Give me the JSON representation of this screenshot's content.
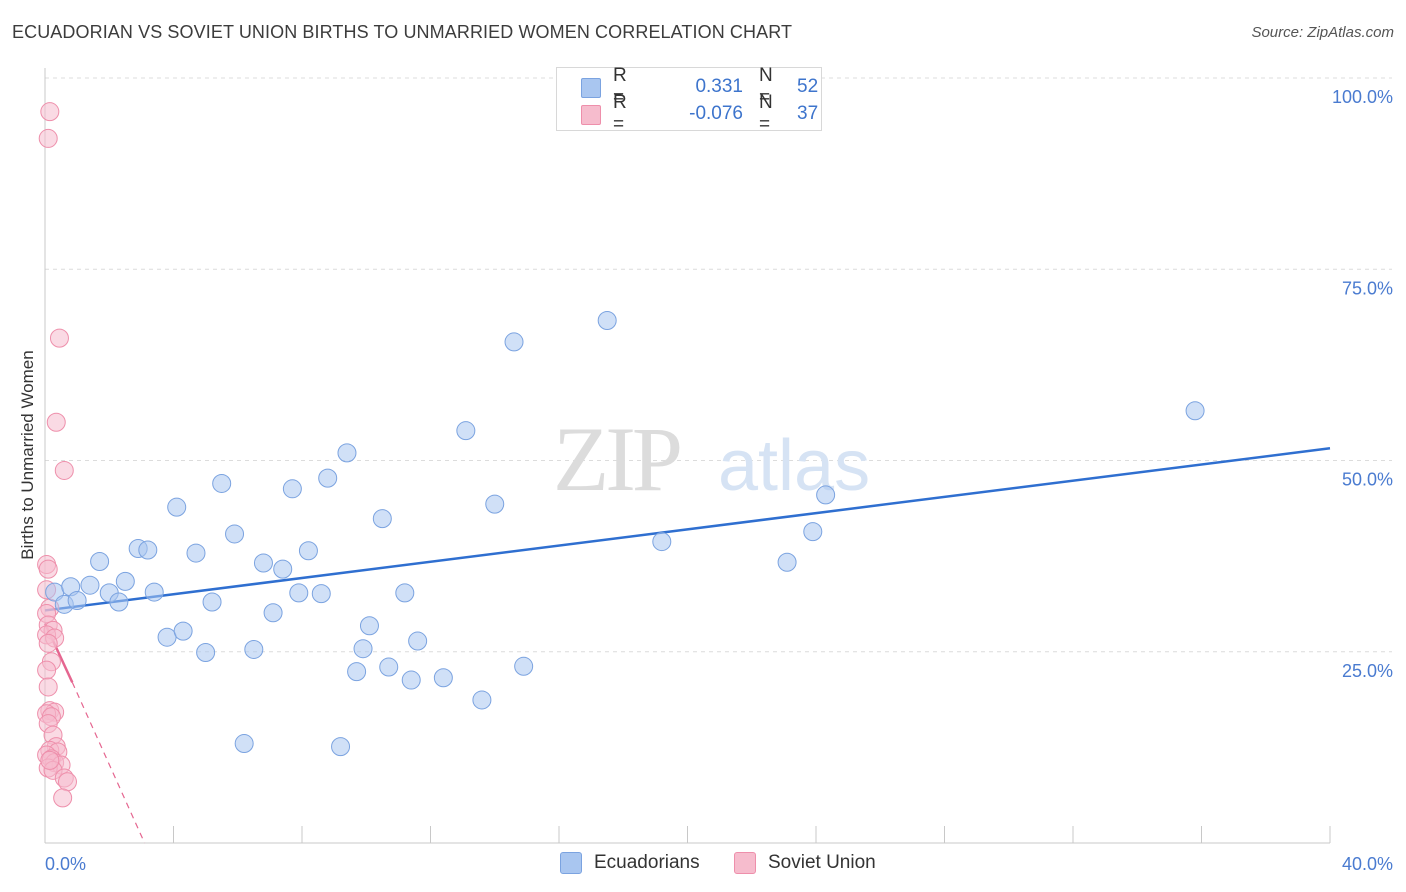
{
  "header": {
    "title": "ECUADORIAN VS SOVIET UNION BIRTHS TO UNMARRIED WOMEN CORRELATION CHART",
    "source": "Source: ZipAtlas.com"
  },
  "watermark": {
    "zip": "ZIP",
    "atlas": "atlas"
  },
  "legend": {
    "rows": [
      {
        "r_label": "R =",
        "r_value": "0.331",
        "n_label": "N =",
        "n_value": "52",
        "color": "#a9c6f0",
        "border": "#7ba3e0"
      },
      {
        "r_label": "R =",
        "r_value": "-0.076",
        "n_label": "N =",
        "n_value": "37",
        "color": "#f6bccd",
        "border": "#ee8fab"
      }
    ]
  },
  "bottom_legend": {
    "items": [
      {
        "label": "Ecuadorians",
        "color": "#a9c6f0",
        "border": "#7ba3e0"
      },
      {
        "label": "Soviet Union",
        "color": "#f6bccd",
        "border": "#ee8fab"
      }
    ]
  },
  "chart_data": {
    "type": "scatter",
    "title": "ECUADORIAN VS SOVIET UNION BIRTHS TO UNMARRIED WOMEN CORRELATION CHART",
    "xlabel": "",
    "ylabel": "Births to Unmarried Women",
    "xlim": [
      0,
      40
    ],
    "ylim": [
      0,
      100
    ],
    "x_tick_labels": [
      "0.0%",
      "40.0%"
    ],
    "y_ticks": [
      25,
      50,
      75,
      100
    ],
    "y_tick_labels": [
      "25.0%",
      "50.0%",
      "75.0%",
      "100.0%"
    ],
    "grid": true,
    "series": [
      {
        "name": "Ecuadorians",
        "color": "#a9c6f0",
        "stroke": "#7ba3e0",
        "trend": {
          "x": [
            0,
            40
          ],
          "y": [
            30.4,
            51.6
          ],
          "color": "#2f6fd0"
        },
        "points": [
          {
            "x": 0.3,
            "y": 32.8
          },
          {
            "x": 0.6,
            "y": 31.2
          },
          {
            "x": 0.8,
            "y": 33.5
          },
          {
            "x": 1.0,
            "y": 31.7
          },
          {
            "x": 1.4,
            "y": 33.7
          },
          {
            "x": 1.7,
            "y": 36.8
          },
          {
            "x": 2.0,
            "y": 32.7
          },
          {
            "x": 2.3,
            "y": 31.5
          },
          {
            "x": 2.5,
            "y": 34.2
          },
          {
            "x": 2.9,
            "y": 38.5
          },
          {
            "x": 3.2,
            "y": 38.3
          },
          {
            "x": 3.4,
            "y": 32.8
          },
          {
            "x": 3.8,
            "y": 26.9
          },
          {
            "x": 4.1,
            "y": 43.9
          },
          {
            "x": 4.3,
            "y": 27.7
          },
          {
            "x": 4.7,
            "y": 37.9
          },
          {
            "x": 5.0,
            "y": 24.9
          },
          {
            "x": 5.2,
            "y": 31.5
          },
          {
            "x": 5.5,
            "y": 47.0
          },
          {
            "x": 5.9,
            "y": 40.4
          },
          {
            "x": 6.2,
            "y": 13.0
          },
          {
            "x": 6.5,
            "y": 25.3
          },
          {
            "x": 6.8,
            "y": 36.6
          },
          {
            "x": 7.1,
            "y": 30.1
          },
          {
            "x": 7.4,
            "y": 35.8
          },
          {
            "x": 7.7,
            "y": 46.3
          },
          {
            "x": 7.9,
            "y": 32.7
          },
          {
            "x": 8.2,
            "y": 38.2
          },
          {
            "x": 8.6,
            "y": 32.6
          },
          {
            "x": 8.8,
            "y": 47.7
          },
          {
            "x": 9.2,
            "y": 12.6
          },
          {
            "x": 9.4,
            "y": 51.0
          },
          {
            "x": 9.7,
            "y": 22.4
          },
          {
            "x": 9.9,
            "y": 25.4
          },
          {
            "x": 10.1,
            "y": 28.4
          },
          {
            "x": 10.5,
            "y": 42.4
          },
          {
            "x": 10.7,
            "y": 23.0
          },
          {
            "x": 11.2,
            "y": 32.7
          },
          {
            "x": 11.4,
            "y": 21.3
          },
          {
            "x": 11.6,
            "y": 26.4
          },
          {
            "x": 12.4,
            "y": 21.6
          },
          {
            "x": 13.1,
            "y": 53.9
          },
          {
            "x": 13.6,
            "y": 18.7
          },
          {
            "x": 14.0,
            "y": 44.3
          },
          {
            "x": 14.6,
            "y": 65.5
          },
          {
            "x": 14.9,
            "y": 23.1
          },
          {
            "x": 17.5,
            "y": 68.3
          },
          {
            "x": 19.2,
            "y": 39.4
          },
          {
            "x": 23.1,
            "y": 36.7
          },
          {
            "x": 23.9,
            "y": 40.7
          },
          {
            "x": 24.3,
            "y": 45.5
          },
          {
            "x": 35.8,
            "y": 56.5
          }
        ]
      },
      {
        "name": "Soviet Union",
        "color": "#f6bccd",
        "stroke": "#ee8fab",
        "trend": {
          "x": [
            0,
            0.85
          ],
          "y": [
            28.7,
            21.0
          ],
          "dash_to": [
            3.1,
            0
          ],
          "color": "#e56690"
        },
        "points": [
          {
            "x": 0.15,
            "y": 95.6
          },
          {
            "x": 0.1,
            "y": 92.1
          },
          {
            "x": 0.45,
            "y": 66.0
          },
          {
            "x": 0.35,
            "y": 55.0
          },
          {
            "x": 0.6,
            "y": 48.7
          },
          {
            "x": 0.05,
            "y": 36.4
          },
          {
            "x": 0.1,
            "y": 35.8
          },
          {
            "x": 0.05,
            "y": 33.1
          },
          {
            "x": 0.15,
            "y": 30.7
          },
          {
            "x": 0.05,
            "y": 30.0
          },
          {
            "x": 0.1,
            "y": 28.5
          },
          {
            "x": 0.25,
            "y": 27.8
          },
          {
            "x": 0.05,
            "y": 27.2
          },
          {
            "x": 0.3,
            "y": 26.8
          },
          {
            "x": 0.1,
            "y": 26.1
          },
          {
            "x": 0.2,
            "y": 23.7
          },
          {
            "x": 0.05,
            "y": 22.6
          },
          {
            "x": 0.1,
            "y": 20.4
          },
          {
            "x": 0.15,
            "y": 17.3
          },
          {
            "x": 0.3,
            "y": 17.1
          },
          {
            "x": 0.05,
            "y": 16.9
          },
          {
            "x": 0.2,
            "y": 16.5
          },
          {
            "x": 0.1,
            "y": 15.6
          },
          {
            "x": 0.25,
            "y": 14.1
          },
          {
            "x": 0.35,
            "y": 12.6
          },
          {
            "x": 0.15,
            "y": 12.1
          },
          {
            "x": 0.4,
            "y": 11.9
          },
          {
            "x": 0.05,
            "y": 11.5
          },
          {
            "x": 0.2,
            "y": 11.0
          },
          {
            "x": 0.3,
            "y": 10.5
          },
          {
            "x": 0.5,
            "y": 10.2
          },
          {
            "x": 0.1,
            "y": 9.8
          },
          {
            "x": 0.25,
            "y": 9.5
          },
          {
            "x": 0.6,
            "y": 8.5
          },
          {
            "x": 0.7,
            "y": 8.0
          },
          {
            "x": 0.55,
            "y": 5.9
          },
          {
            "x": 0.15,
            "y": 10.8
          }
        ]
      }
    ]
  }
}
